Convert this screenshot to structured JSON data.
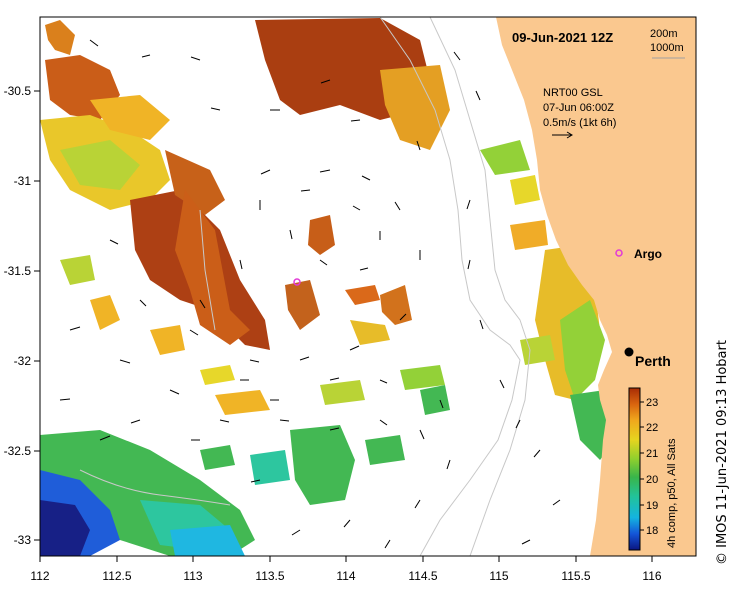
{
  "map": {
    "title": "09-Jun-2021 12Z",
    "scale": {
      "depth1": "200m",
      "depth2": "1000m"
    },
    "current_legend": {
      "line1": "NRT00 GSL",
      "line2": "07-Jun 06:00Z",
      "line3": "0.5m/s (1kt 6h)"
    },
    "x_ticks": [
      "112",
      "112.5",
      "113",
      "113.5",
      "114",
      "114.5",
      "115",
      "115.5",
      "116"
    ],
    "y_ticks": [
      "-30.5",
      "-31",
      "-31.5",
      "-32",
      "-32.5",
      "-33"
    ],
    "labels": {
      "argo": "Argo",
      "city": "Perth"
    },
    "colorbar": {
      "ticks": [
        "23",
        "22",
        "21",
        "20",
        "19",
        "18"
      ],
      "label": "4h comp, p50, All Sats",
      "colors": [
        "#0b1580",
        "#1455d8",
        "#14b4e0",
        "#22c39a",
        "#39b54a",
        "#8ecf2e",
        "#e6d51f",
        "#f0a81d",
        "#d9650f",
        "#a82c05"
      ]
    },
    "credit": "© IMOS 11-Jun-2021 09:13 Hobart",
    "colors": {
      "land": "#fac88f",
      "argo_marker": "#e23ad6"
    }
  }
}
